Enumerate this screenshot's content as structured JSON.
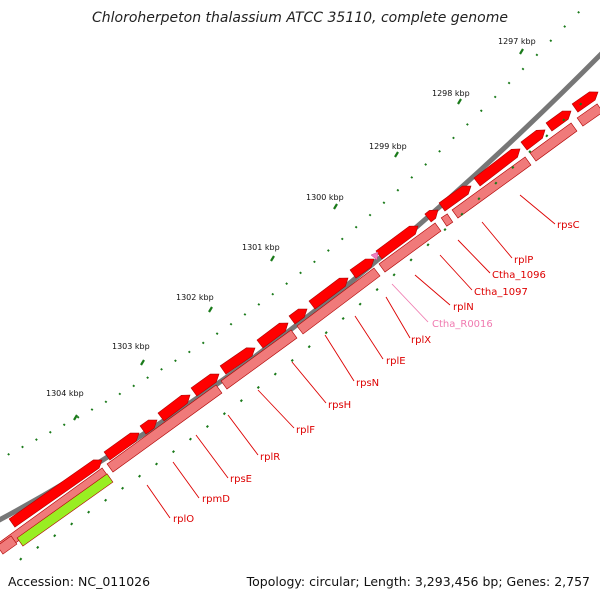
{
  "title": "Chloroherpeton thalassium ATCC 35110, complete genome",
  "footer": {
    "accession": "Accession: NC_011026",
    "summary": "Topology: circular; Length: 3,293,456 bp; Genes: 2,757"
  },
  "colors": {
    "backbone": "#808080",
    "cds_forward": "#ff0000",
    "cds_forward_light": "#f07a7a",
    "rna": "#f080c0",
    "highlight": "#99ee22",
    "tick": "#1a7a1a",
    "label_red": "#dd0000",
    "label_pink": "#f07ab0"
  },
  "scale": {
    "ticks": [
      "1297 kbp",
      "1298 kbp",
      "1299 kbp",
      "1300 kbp",
      "1301 kbp",
      "1302 kbp",
      "1303 kbp",
      "1304 kbp"
    ]
  },
  "genes": [
    {
      "name": "rpsC",
      "color": "red"
    },
    {
      "name": "rplP",
      "color": "red"
    },
    {
      "name": "Ctha_1096",
      "color": "red"
    },
    {
      "name": "Ctha_1097",
      "color": "red"
    },
    {
      "name": "rplN",
      "color": "red"
    },
    {
      "name": "Ctha_R0016",
      "color": "pink"
    },
    {
      "name": "rplX",
      "color": "red"
    },
    {
      "name": "rplE",
      "color": "red"
    },
    {
      "name": "rpsN",
      "color": "red"
    },
    {
      "name": "rpsH",
      "color": "red"
    },
    {
      "name": "rplF",
      "color": "red"
    },
    {
      "name": "rplR",
      "color": "red"
    },
    {
      "name": "rpsE",
      "color": "red"
    },
    {
      "name": "rpmD",
      "color": "red"
    },
    {
      "name": "rplO",
      "color": "red"
    }
  ]
}
